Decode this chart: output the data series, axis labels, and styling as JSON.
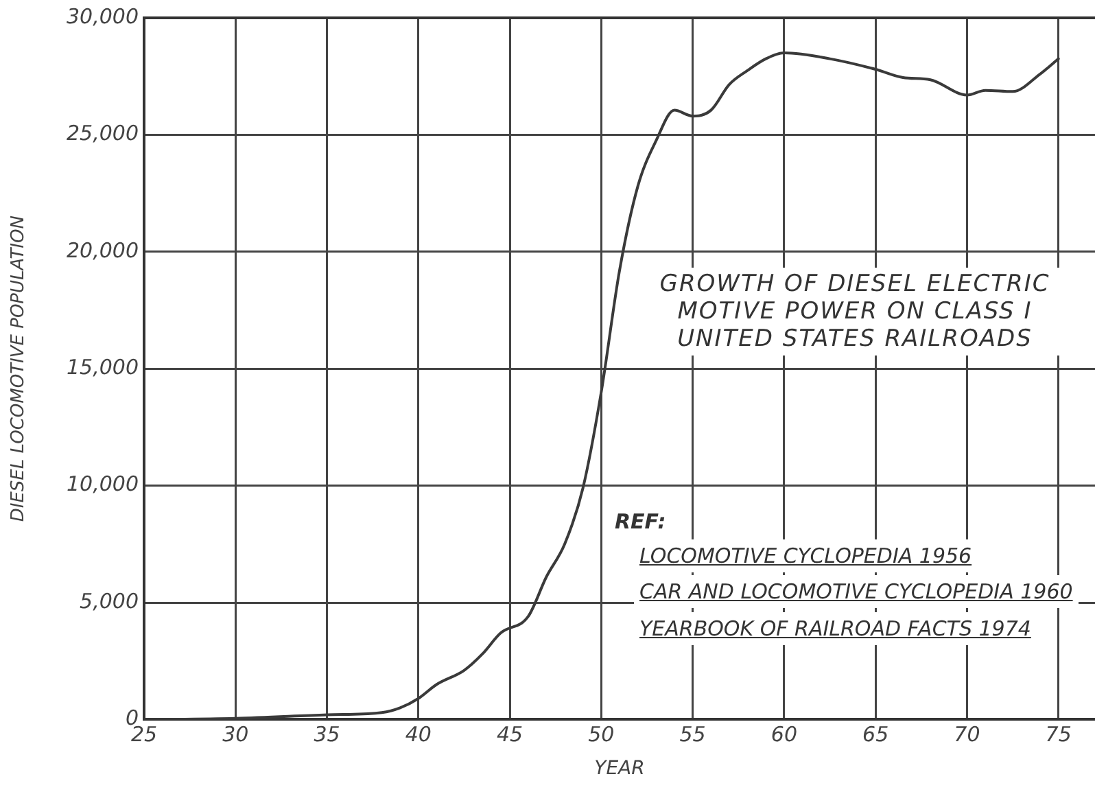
{
  "chart_data": {
    "type": "line",
    "title": "GROWTH OF DIESEL ELECTRIC MOTIVE POWER ON CLASS I UNITED STATES RAILROADS",
    "xlabel": "YEAR",
    "ylabel": "DIESEL LOCOMOTIVE POPULATION",
    "annotations": [
      "REF:",
      "LOCOMOTIVE CYCLOPEDIA 1956",
      "CAR AND LOCOMOTIVE CYCLOPEDIA 1960",
      "YEARBOOK OF RAILROAD FACTS 1974"
    ],
    "x": [
      25,
      30,
      35,
      38,
      39,
      40,
      41,
      42.5,
      43.5,
      44.5,
      46,
      47,
      48,
      49,
      50,
      51,
      52,
      53,
      54,
      55,
      56,
      57,
      58,
      59,
      60,
      62.5,
      65,
      66.5,
      68,
      70,
      71,
      72.5,
      74,
      75
    ],
    "series": [
      {
        "color": "#3a3a3a",
        "values": [
          0,
          50,
          200,
          300,
          500,
          900,
          1500,
          2100,
          2800,
          3700,
          4400,
          6100,
          7500,
          9900,
          14000,
          19200,
          22800,
          24750,
          26050,
          25800,
          26050,
          27150,
          27750,
          28250,
          28500,
          28250,
          27800,
          27450,
          27350,
          26700,
          26900,
          26850,
          27600,
          28250
        ]
      }
    ],
    "xlim": [
      25,
      77
    ],
    "xticks": [
      25,
      30,
      35,
      40,
      45,
      50,
      55,
      60,
      65,
      70,
      75
    ],
    "ylim": [
      0,
      30000
    ],
    "yticks": [
      {
        "value": 0,
        "label": "0"
      },
      {
        "value": 5000,
        "label": "5,000"
      },
      {
        "value": 10000,
        "label": "10,000"
      },
      {
        "value": 15000,
        "label": "15,000"
      },
      {
        "value": 20000,
        "label": "20,000"
      },
      {
        "value": 25000,
        "label": "25,000"
      },
      {
        "value": 30000,
        "label": "30,000"
      }
    ],
    "grid": true,
    "legend": false,
    "marker": "none",
    "line_style": "solid"
  }
}
